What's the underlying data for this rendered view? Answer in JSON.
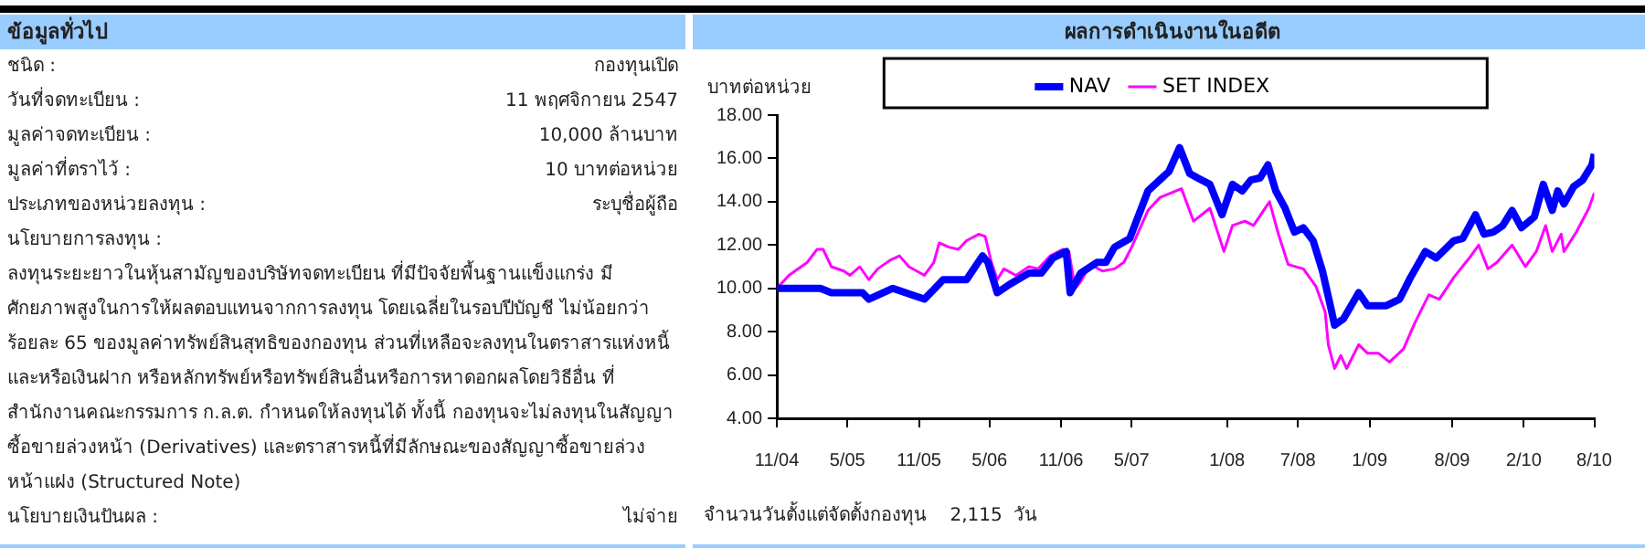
{
  "chart_data": [
    {
      "type": "other",
      "title": "ข้อมูลทั่วไป",
      "annotations": [
        "ชนิด :",
        "กองทุนเปิด",
        "วันที่จดทะเบียน :",
        "11 พฤศจิกายน 2547",
        "มูลค่าจดทะเบียน :",
        "10,000 ล้านบาท",
        "มูลค่าที่ตราไว้ :",
        "10 บาทต่อหน่วย",
        "ประเภทของหน่วยลงทุน :",
        "ระบุชื่อผู้ถือ",
        "นโยบายการลงทุน :",
        "ลงทุนระยะยาวในหุ้นสามัญของบริษัทจดทะเบียน ที่มีปัจจัยพื้นฐานแข็งแกร่ง มีศักยภาพสูงในการให้ผลตอบแทนจากการลงทุน โดยเฉลี่ยในรอบปีบัญชี ไม่น้อยกว่า ร้อยละ 65 ของมูลค่าทรัพย์สินสุทธิของกองทุน ส่วนที่เหลือจะลงทุนในตราสารแห่งหนี้ และหรือเงินฝาก หรือหลักทรัพย์หรือทรัพย์สินอื่นหรือการหาดอกผลโดยวิธีอื่น ที่สำนักงานคณะกรรมการ ก.ล.ต. กำหนดให้ลงทุนได้ ทั้งนี้ กองทุนจะไม่ลงทุนในสัญญาซื้อขายล่วงหน้า (Derivatives) และตราสารหนี้ที่มีลักษณะของสัญญาซื้อขายล่วงหน้าแฝง (Structured Note)",
        "นโยบายเงินปันผล :",
        "ไม่จ่าย"
      ]
    },
    {
      "type": "line",
      "title": "ผลการดำเนินงานในอดีต",
      "ylabel": "บาทต่อหน่วย",
      "annotations": [
        "จำนวนวันตั้งแต่จัดตั้งกองทุน    2,115  วัน"
      ],
      "xlim": [
        "2004-11",
        "2010-08"
      ],
      "xticks": [
        {
          "value": "2004-11",
          "label": "11/04"
        },
        {
          "value": "2005-05",
          "label": "5/05"
        },
        {
          "value": "2005-11",
          "label": "11/05"
        },
        {
          "value": "2006-05",
          "label": "5/06"
        },
        {
          "value": "2006-11",
          "label": "11/06"
        },
        {
          "value": "2007-05",
          "label": "5/07"
        },
        {
          "value": "2008-01",
          "label": "1/08"
        },
        {
          "value": "2008-07",
          "label": "7/08"
        },
        {
          "value": "2009-01",
          "label": "1/09"
        },
        {
          "value": "2009-08",
          "label": "8/09"
        },
        {
          "value": "2010-02",
          "label": "2/10"
        },
        {
          "value": "2010-08",
          "label": "8/10"
        }
      ],
      "ylim": [
        4,
        18
      ],
      "yticks": [
        {
          "value": 4,
          "label": "4.00"
        },
        {
          "value": 6,
          "label": "6.00"
        },
        {
          "value": 8,
          "label": "8.00"
        },
        {
          "value": 10,
          "label": "10.00"
        },
        {
          "value": 12,
          "label": "12.00"
        },
        {
          "value": 14,
          "label": "14.00"
        },
        {
          "value": 16,
          "label": "16.00"
        },
        {
          "value": 18,
          "label": "18.00"
        }
      ],
      "grid": false,
      "legend": "top",
      "marker": "none",
      "line_style": "solid",
      "series": [
        {
          "name": "NAV",
          "color": "#0000ff",
          "x": [
            "2004-11-01",
            "2005-02-21",
            "2005-03-21",
            "2005-06-09",
            "2005-06-25",
            "2005-08-26",
            "2005-10-13",
            "2005-11-15",
            "2006-01-02",
            "2006-03-03",
            "2006-04-13",
            "2006-04-27",
            "2006-05-21",
            "2006-06-23",
            "2006-08-10",
            "2006-09-11",
            "2006-10-11",
            "2006-11-14",
            "2006-11-24",
            "2006-12-21",
            "2007-02-01",
            "2007-02-24",
            "2007-03-18",
            "2007-04-26",
            "2007-06-12",
            "2007-08-05",
            "2007-09-01",
            "2007-09-27",
            "2007-10-17",
            "2007-11-18",
            "2007-12-19",
            "2008-01-15",
            "2008-02-09",
            "2008-03-02",
            "2008-03-26",
            "2008-04-15",
            "2008-05-05",
            "2008-05-29",
            "2008-06-22",
            "2008-07-15",
            "2008-08-09",
            "2008-09-02",
            "2008-09-26",
            "2008-10-03",
            "2008-10-26",
            "2008-12-04",
            "2008-12-27",
            "2009-02-13",
            "2009-03-19",
            "2009-04-16",
            "2009-05-24",
            "2009-06-21",
            "2009-08-05",
            "2009-08-28",
            "2009-09-30",
            "2009-10-22",
            "2009-11-15",
            "2009-12-09",
            "2010-01-02",
            "2010-01-26",
            "2010-02-28",
            "2010-03-23",
            "2010-04-15",
            "2010-04-29",
            "2010-05-15",
            "2010-06-09",
            "2010-07-02",
            "2010-07-26",
            "2010-08-01"
          ],
          "values": [
            10.0,
            10.0,
            9.8,
            9.8,
            9.5,
            10.0,
            9.7,
            9.5,
            10.4,
            10.4,
            11.5,
            11.2,
            9.8,
            10.2,
            10.7,
            10.7,
            11.4,
            11.7,
            9.8,
            10.7,
            11.2,
            11.2,
            11.9,
            12.3,
            14.5,
            15.4,
            16.5,
            15.3,
            15.1,
            14.8,
            13.4,
            14.8,
            14.5,
            15.0,
            15.1,
            15.7,
            14.5,
            13.7,
            12.6,
            12.8,
            12.2,
            10.8,
            8.9,
            8.3,
            8.6,
            9.8,
            9.2,
            9.2,
            9.5,
            10.5,
            11.7,
            11.4,
            12.2,
            12.3,
            13.4,
            12.5,
            12.6,
            12.9,
            13.6,
            12.8,
            13.3,
            14.8,
            13.6,
            14.5,
            13.9,
            14.7,
            15.0,
            15.7,
            16.2
          ]
        },
        {
          "name": "SET INDEX",
          "color": "#ff00ff",
          "x": [
            "2004-11-01",
            "2004-12-02",
            "2005-01-18",
            "2005-02-12",
            "2005-02-28",
            "2005-03-21",
            "2005-04-22",
            "2005-05-08",
            "2005-06-02",
            "2005-06-25",
            "2005-07-18",
            "2005-08-19",
            "2005-09-12",
            "2005-10-06",
            "2005-11-15",
            "2005-12-09",
            "2005-12-23",
            "2006-01-17",
            "2006-02-10",
            "2006-03-03",
            "2006-04-04",
            "2006-04-20",
            "2006-05-06",
            "2006-05-21",
            "2006-06-07",
            "2006-07-08",
            "2006-08-10",
            "2006-09-03",
            "2006-10-04",
            "2006-11-05",
            "2006-11-21",
            "2006-12-07",
            "2006-12-21",
            "2007-01-15",
            "2007-02-15",
            "2007-03-18",
            "2007-04-11",
            "2007-05-01",
            "2007-06-12",
            "2007-07-13",
            "2007-09-06",
            "2007-10-07",
            "2007-11-18",
            "2007-12-24",
            "2008-01-15",
            "2008-02-16",
            "2008-03-09",
            "2008-04-19",
            "2008-05-12",
            "2008-06-06",
            "2008-07-15",
            "2008-08-16",
            "2008-09-09",
            "2008-09-17",
            "2008-10-03",
            "2008-10-19",
            "2008-11-03",
            "2008-12-04",
            "2008-12-27",
            "2009-01-24",
            "2009-02-21",
            "2009-03-29",
            "2009-04-27",
            "2009-06-02",
            "2009-06-29",
            "2009-08-05",
            "2009-09-14",
            "2009-10-08",
            "2009-11-01",
            "2009-11-24",
            "2010-01-02",
            "2010-02-05",
            "2010-03-05",
            "2010-03-29",
            "2010-04-15",
            "2010-05-08",
            "2010-05-15",
            "2010-06-16",
            "2010-07-18",
            "2010-08-01"
          ],
          "values": [
            10.0,
            10.6,
            11.2,
            11.8,
            11.8,
            11.0,
            10.8,
            10.6,
            11.0,
            10.4,
            10.9,
            11.3,
            11.5,
            11.0,
            10.6,
            11.2,
            12.1,
            11.9,
            11.8,
            12.2,
            12.5,
            12.4,
            11.2,
            10.4,
            10.9,
            10.6,
            11.0,
            10.9,
            11.5,
            11.8,
            11.7,
            10.0,
            10.3,
            11.1,
            10.8,
            10.9,
            11.2,
            11.9,
            13.6,
            14.2,
            14.6,
            13.1,
            13.7,
            11.7,
            12.9,
            13.1,
            12.9,
            14.0,
            12.5,
            11.1,
            10.9,
            10.1,
            8.9,
            7.4,
            6.3,
            6.9,
            6.3,
            7.4,
            7.0,
            7.0,
            6.6,
            7.2,
            8.4,
            9.7,
            9.5,
            10.5,
            11.4,
            12.0,
            10.9,
            11.2,
            12.0,
            11.0,
            11.7,
            12.9,
            11.7,
            12.5,
            11.7,
            12.6,
            13.7,
            14.4
          ]
        }
      ]
    }
  ]
}
